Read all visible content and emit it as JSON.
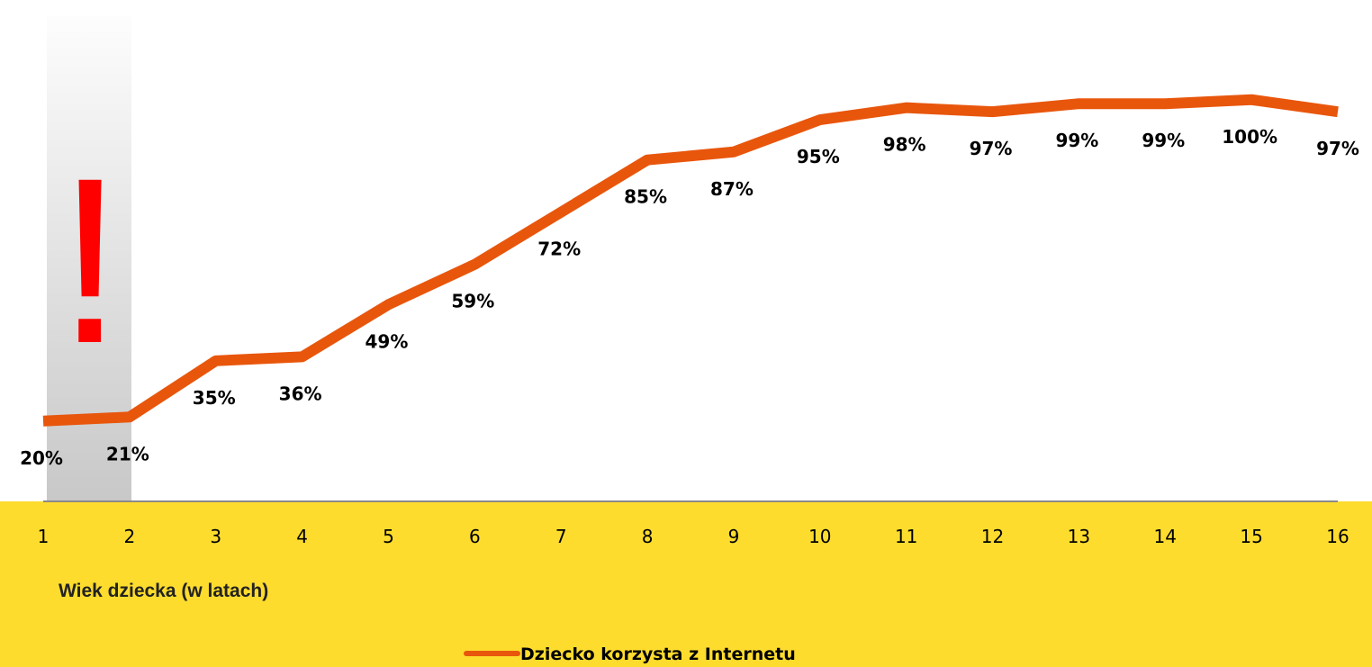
{
  "chart_data": {
    "type": "line",
    "categories": [
      "1",
      "2",
      "3",
      "4",
      "5",
      "6",
      "7",
      "8",
      "9",
      "10",
      "11",
      "12",
      "13",
      "14",
      "15",
      "16"
    ],
    "series": [
      {
        "name": "Dziecko korzysta z Internetu",
        "color": "#e8560c",
        "values": [
          20,
          21,
          35,
          36,
          49,
          59,
          72,
          85,
          87,
          95,
          98,
          97,
          99,
          99,
          100,
          97
        ],
        "value_labels": [
          "20%",
          "21%",
          "35%",
          "36%",
          "49%",
          "59%",
          "72%",
          "85%",
          "87%",
          "95%",
          "98%",
          "97%",
          "99%",
          "99%",
          "100%",
          "97%"
        ]
      }
    ],
    "ylim": [
      0,
      100
    ],
    "x_label": "Wiek dziecka (w latach)",
    "annotation": "!",
    "legend": "bottom"
  }
}
